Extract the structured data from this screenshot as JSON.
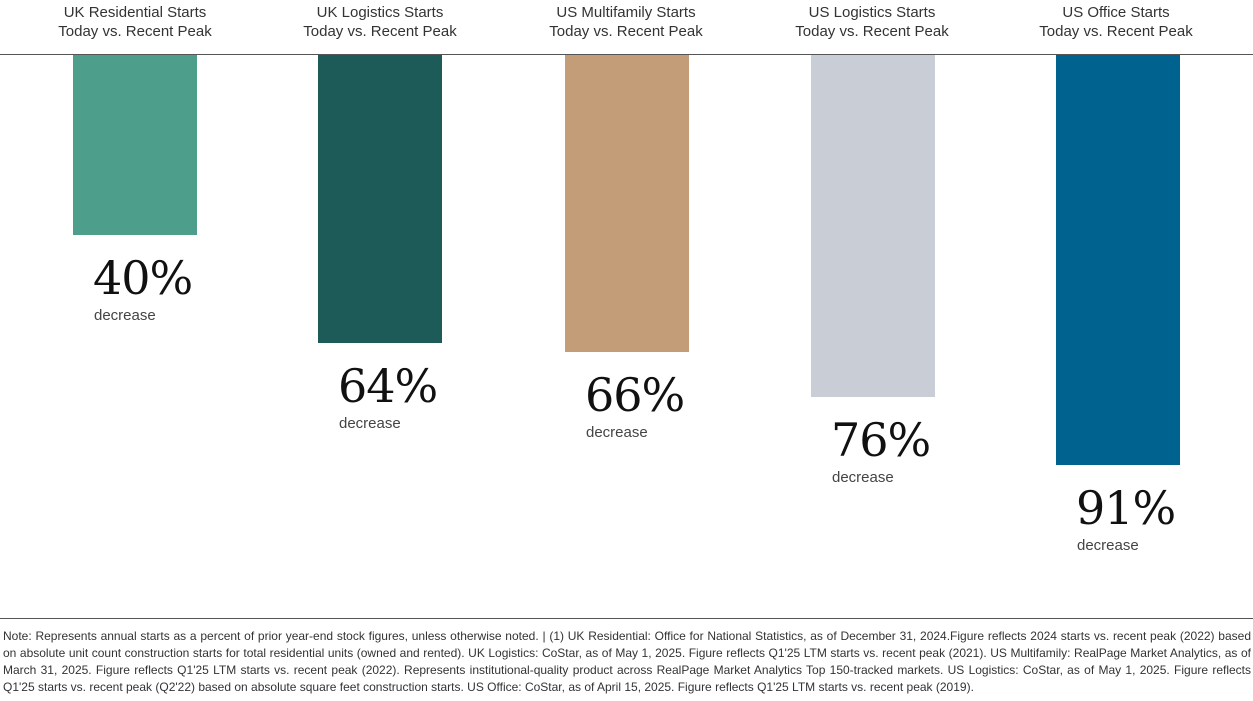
{
  "chart_data": {
    "type": "bar",
    "categories": [
      {
        "title": "UK Residential Starts",
        "subtitle": "Today vs. Recent Peak"
      },
      {
        "title": "UK Logistics Starts",
        "subtitle": "Today vs. Recent Peak"
      },
      {
        "title": "US Multifamily Starts",
        "subtitle": "Today vs. Recent Peak"
      },
      {
        "title": "US Logistics Starts",
        "subtitle": "Today vs. Recent Peak"
      },
      {
        "title": "US Office Starts",
        "subtitle": "Today vs. Recent Peak"
      }
    ],
    "values": [
      40,
      64,
      66,
      76,
      91
    ],
    "value_labels": [
      "40%",
      "64%",
      "66%",
      "76%",
      "91%"
    ],
    "value_caption": "decrease",
    "colors": [
      "#4e9e8c",
      "#1c5b58",
      "#c39c78",
      "#c9ced6",
      "#00628f"
    ],
    "orientation": "downward",
    "ylim": [
      0,
      100
    ]
  },
  "footnote": "Note: Represents annual starts as a percent of prior year-end stock figures, unless otherwise noted.  |  (1) UK Residential: Office for National Statistics, as of December 31, 2024.Figure reflects 2024 starts vs. recent peak (2022) based on absolute unit count construction starts for total residential units (owned and rented). UK Logistics: CoStar, as of May 1, 2025. Figure reflects Q1'25 LTM starts vs. recent peak (2021). US Multifamily: RealPage Market Analytics, as of March 31, 2025. Figure reflects Q1'25 LTM starts vs. recent peak (2022). Represents institutional-quality product across RealPage Market Analytics Top 150-tracked markets. US Logistics: CoStar, as of May 1, 2025. Figure reflects Q1'25 starts vs. recent peak (Q2'22) based on absolute square feet construction starts. US Office: CoStar, as of April 15, 2025. Figure reflects Q1'25 LTM starts vs. recent peak (2019)."
}
